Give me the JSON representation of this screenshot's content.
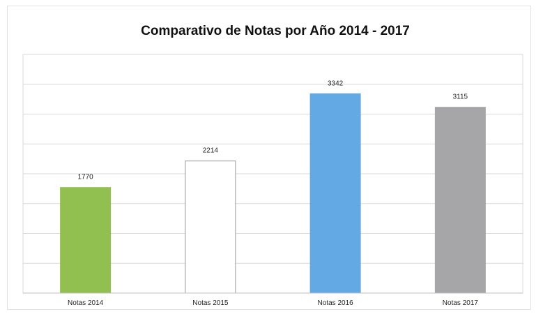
{
  "chart_data": {
    "type": "bar",
    "title": "Comparativo de Notas por Año 2014 - 2017",
    "categories": [
      "Notas 2014",
      "Notas 2015",
      "Notas 2016",
      "Notas 2017"
    ],
    "values": [
      1770,
      2214,
      3342,
      3115
    ],
    "data_labels": [
      "1770",
      "2214",
      "3342",
      "3115"
    ],
    "colors": [
      "#92c050",
      "#ffffff",
      "#63a9e4",
      "#a6a6a8"
    ],
    "ylim": [
      0,
      4000
    ],
    "y_gridline_step": 500,
    "grid": true,
    "legend": "none",
    "xlabel": "",
    "ylabel": ""
  }
}
